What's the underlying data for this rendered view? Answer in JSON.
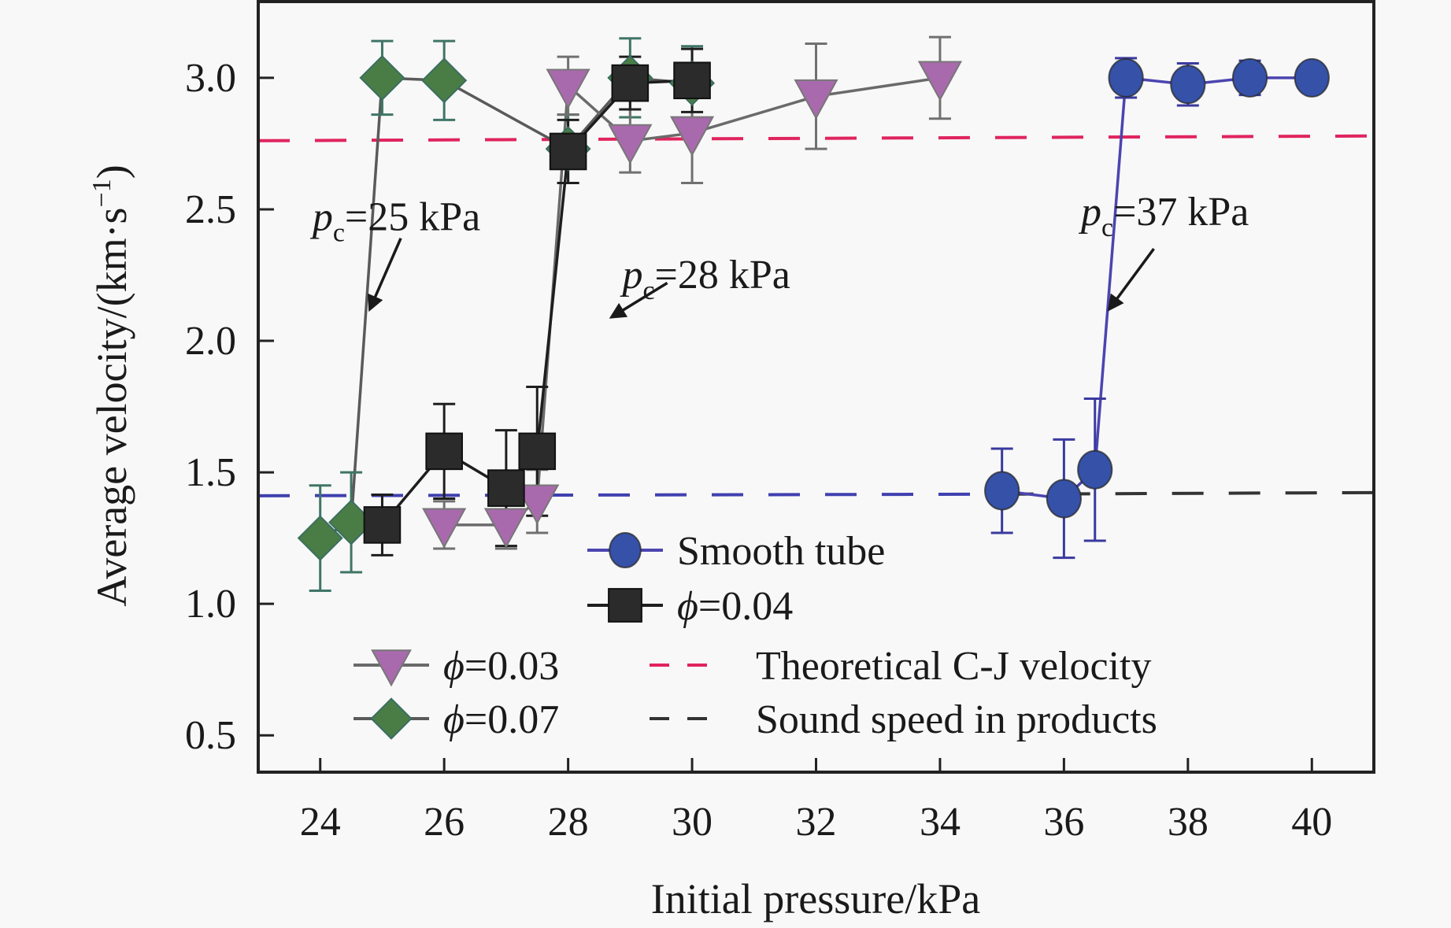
{
  "chart_data": {
    "type": "scatter",
    "title": "",
    "xlabel": "Initial pressure/kPa",
    "ylabel": "Average velocity/(km·s⁻¹)",
    "ylabel_parts": {
      "main": "Average velocity/(km·s",
      "sup": "−1",
      "close": ")"
    },
    "xlim": [
      23,
      41
    ],
    "ylim": [
      0.36,
      3.29
    ],
    "xticks": [
      24,
      26,
      28,
      30,
      32,
      34,
      36,
      38,
      40
    ],
    "xtick_labels": [
      "24",
      "26",
      "28",
      "30",
      "32",
      "34",
      "36",
      "38",
      "40"
    ],
    "yticks": [
      0.5,
      1.0,
      1.5,
      2.0,
      2.5,
      3.0
    ],
    "ytick_labels": [
      "0.5",
      "1.0",
      "1.5",
      "2.0",
      "2.5",
      "3.0"
    ],
    "grid": false,
    "legend_position": "lower-center",
    "series": [
      {
        "name": "Smooth tube",
        "marker": "circle",
        "color": "#3551a8",
        "line_color": "#4b45b0",
        "x": [
          35,
          36,
          36.5,
          37,
          38,
          39,
          40
        ],
        "y": [
          1.43,
          1.4,
          1.51,
          3.0,
          2.975,
          3.0,
          3.0
        ],
        "yerr": [
          0.16,
          0.225,
          0.27,
          0.075,
          0.08,
          0.065,
          0.05
        ]
      },
      {
        "name": "ϕ=0.04",
        "legend_symbol": "ϕ",
        "legend_value": "=0.04",
        "marker": "square",
        "color": "#2b2b2b",
        "line_color": "#1e1e1e",
        "x": [
          25,
          26,
          27,
          27.5,
          28,
          29,
          30
        ],
        "y": [
          1.3,
          1.58,
          1.44,
          1.58,
          2.72,
          2.98,
          2.99
        ],
        "yerr": [
          0.115,
          0.18,
          0.22,
          0.245,
          0.12,
          0.1,
          0.12
        ]
      },
      {
        "name": "ϕ=0.03",
        "legend_symbol": "ϕ",
        "legend_value": "=0.03",
        "marker": "triangle-down",
        "color": "#a86aad",
        "line_color": "#6a6a6a",
        "x": [
          26,
          27,
          27.5,
          28,
          29,
          30,
          32,
          34
        ],
        "y": [
          1.3,
          1.3,
          1.39,
          2.97,
          2.76,
          2.79,
          2.93,
          3.0
        ],
        "yerr": [
          0.09,
          0.09,
          0.12,
          0.11,
          0.12,
          0.19,
          0.2,
          0.155
        ]
      },
      {
        "name": "ϕ=0.07",
        "legend_symbol": "ϕ",
        "legend_value": "=0.07",
        "marker": "diamond",
        "color": "#4a7d46",
        "line_color": "#5a5a5a",
        "x": [
          24,
          24.5,
          25,
          26,
          28,
          29,
          30
        ],
        "y": [
          1.25,
          1.31,
          3.0,
          2.99,
          2.73,
          3.0,
          2.98
        ],
        "yerr": [
          0.2,
          0.19,
          0.14,
          0.15,
          0.13,
          0.15,
          0.14
        ]
      }
    ],
    "reference_lines": [
      {
        "name": "Theoretical C-J velocity",
        "y": 2.77,
        "color": "#e0245e",
        "style": "dashed"
      },
      {
        "name": "Sound speed in products",
        "y": 1.42,
        "color": "#333333",
        "left_color": "#4040b0",
        "style": "dashed"
      }
    ],
    "annotations": [
      {
        "label_sym": "p",
        "label_sub": "c",
        "label_rest": "=25 kPa",
        "text_x": 24.7,
        "text_y": 2.42,
        "arrow_from": [
          25.3,
          2.39
        ],
        "arrow_to": [
          24.8,
          2.12
        ]
      },
      {
        "label_sym": "p",
        "label_sub": "c",
        "label_rest": "=28 kPa",
        "text_x": 29.7,
        "text_y": 2.2,
        "arrow_from": [
          29.6,
          2.22
        ],
        "arrow_to": [
          28.7,
          2.09
        ]
      },
      {
        "label_sym": "p",
        "label_sub": "c",
        "label_rest": "=37 kPa",
        "text_x": 37.1,
        "text_y": 2.44,
        "arrow_from": [
          37.45,
          2.35
        ],
        "arrow_to": [
          36.73,
          2.12
        ]
      }
    ]
  }
}
